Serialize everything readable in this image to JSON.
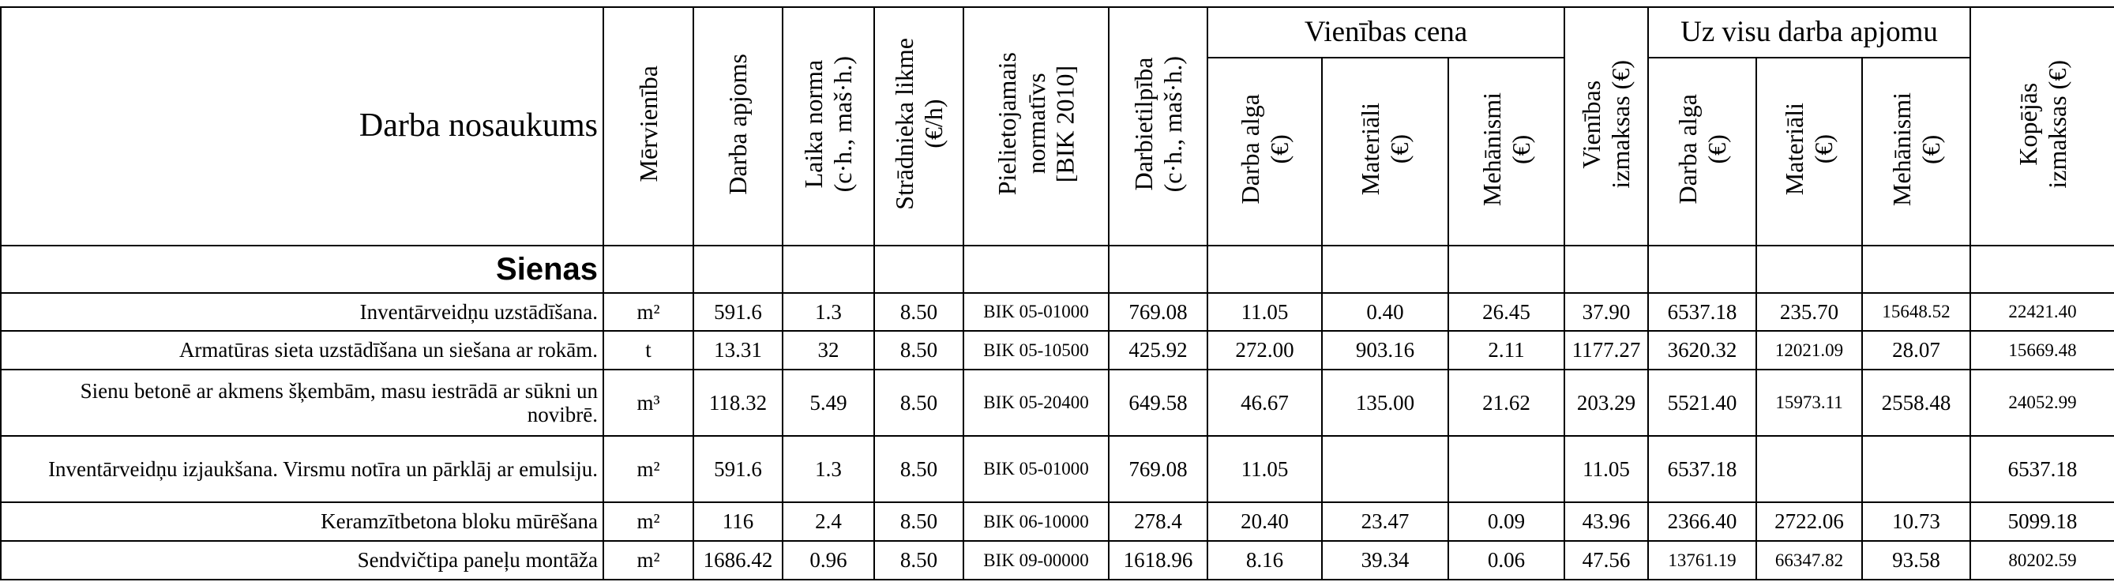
{
  "header": {
    "title": "Darba nosaukums",
    "columns_before": [
      [
        "Mērvienība"
      ],
      [
        "Darba apjoms"
      ],
      [
        "Laika norma",
        "(c·h., maš·h.)"
      ],
      [
        "Strādnieka likme",
        "(€/h)"
      ],
      [
        "Pielietojamais",
        "normatīvs",
        "[BIK 2010]"
      ],
      [
        "Darbietilpība",
        "(c·h., maš·h.)"
      ]
    ],
    "group_1": {
      "title": "Vienības cena",
      "columns": [
        [
          "Darba alga",
          "(€)"
        ],
        [
          "Materiāli",
          "(€)"
        ],
        [
          "Mehānismi",
          "(€)"
        ]
      ]
    },
    "column_middle": [
      "Vienības",
      "izmaksas (€)"
    ],
    "group_2": {
      "title": "Uz visu darba apjomu",
      "columns": [
        [
          "Darba alga",
          "(€)"
        ],
        [
          "Materiāli",
          "(€)"
        ],
        [
          "Mehānismi",
          "(€)"
        ]
      ]
    },
    "column_last": [
      "Kopējās",
      "izmaksas (€)"
    ]
  },
  "sections": [
    {
      "title": "Sienas",
      "rows": [
        [
          "Inventārveidņu uzstādīšana.",
          "m²",
          "591.6",
          "1.3",
          "8.50",
          "BIK 05-01000",
          "769.08",
          "11.05",
          "0.40",
          "26.45",
          "37.90",
          "6537.18",
          "235.70",
          "15648.52",
          "22421.40"
        ],
        [
          "Armatūras sieta uzstādīšana un siešana ar rokām.",
          "t",
          "13.31",
          "32",
          "8.50",
          "BIK 05-10500",
          "425.92",
          "272.00",
          "903.16",
          "2.11",
          "1177.27",
          "3620.32",
          "12021.09",
          "28.07",
          "15669.48"
        ],
        [
          "Sienu betonē ar akmens šķembām, masu iestrādā ar sūkni un novibrē.",
          "m³",
          "118.32",
          "5.49",
          "8.50",
          "BIK 05-20400",
          "649.58",
          "46.67",
          "135.00",
          "21.62",
          "203.29",
          "5521.40",
          "15973.11",
          "2558.48",
          "24052.99"
        ],
        [
          "Inventārveidņu izjaukšana. Virsmu notīra un pārklāj ar emulsiju.",
          "m²",
          "591.6",
          "1.3",
          "8.50",
          "BIK 05-01000",
          "769.08",
          "11.05",
          null,
          null,
          "11.05",
          "6537.18",
          null,
          null,
          "6537.18"
        ],
        [
          "Keramzītbetona bloku mūrēšana",
          "m²",
          "116",
          "2.4",
          "8.50",
          "BIK 06-10000",
          "278.4",
          "20.40",
          "23.47",
          "0.09",
          "43.96",
          "2366.40",
          "2722.06",
          "10.73",
          "5099.18"
        ],
        [
          "Sendvičtipa paneļu montāža",
          "m²",
          "1686.42",
          "0.96",
          "8.50",
          "BIK 09-00000",
          "1618.96",
          "8.16",
          "39.34",
          "0.06",
          "47.56",
          "13761.19",
          "66347.82",
          "93.58",
          "80202.59"
        ]
      ]
    }
  ]
}
